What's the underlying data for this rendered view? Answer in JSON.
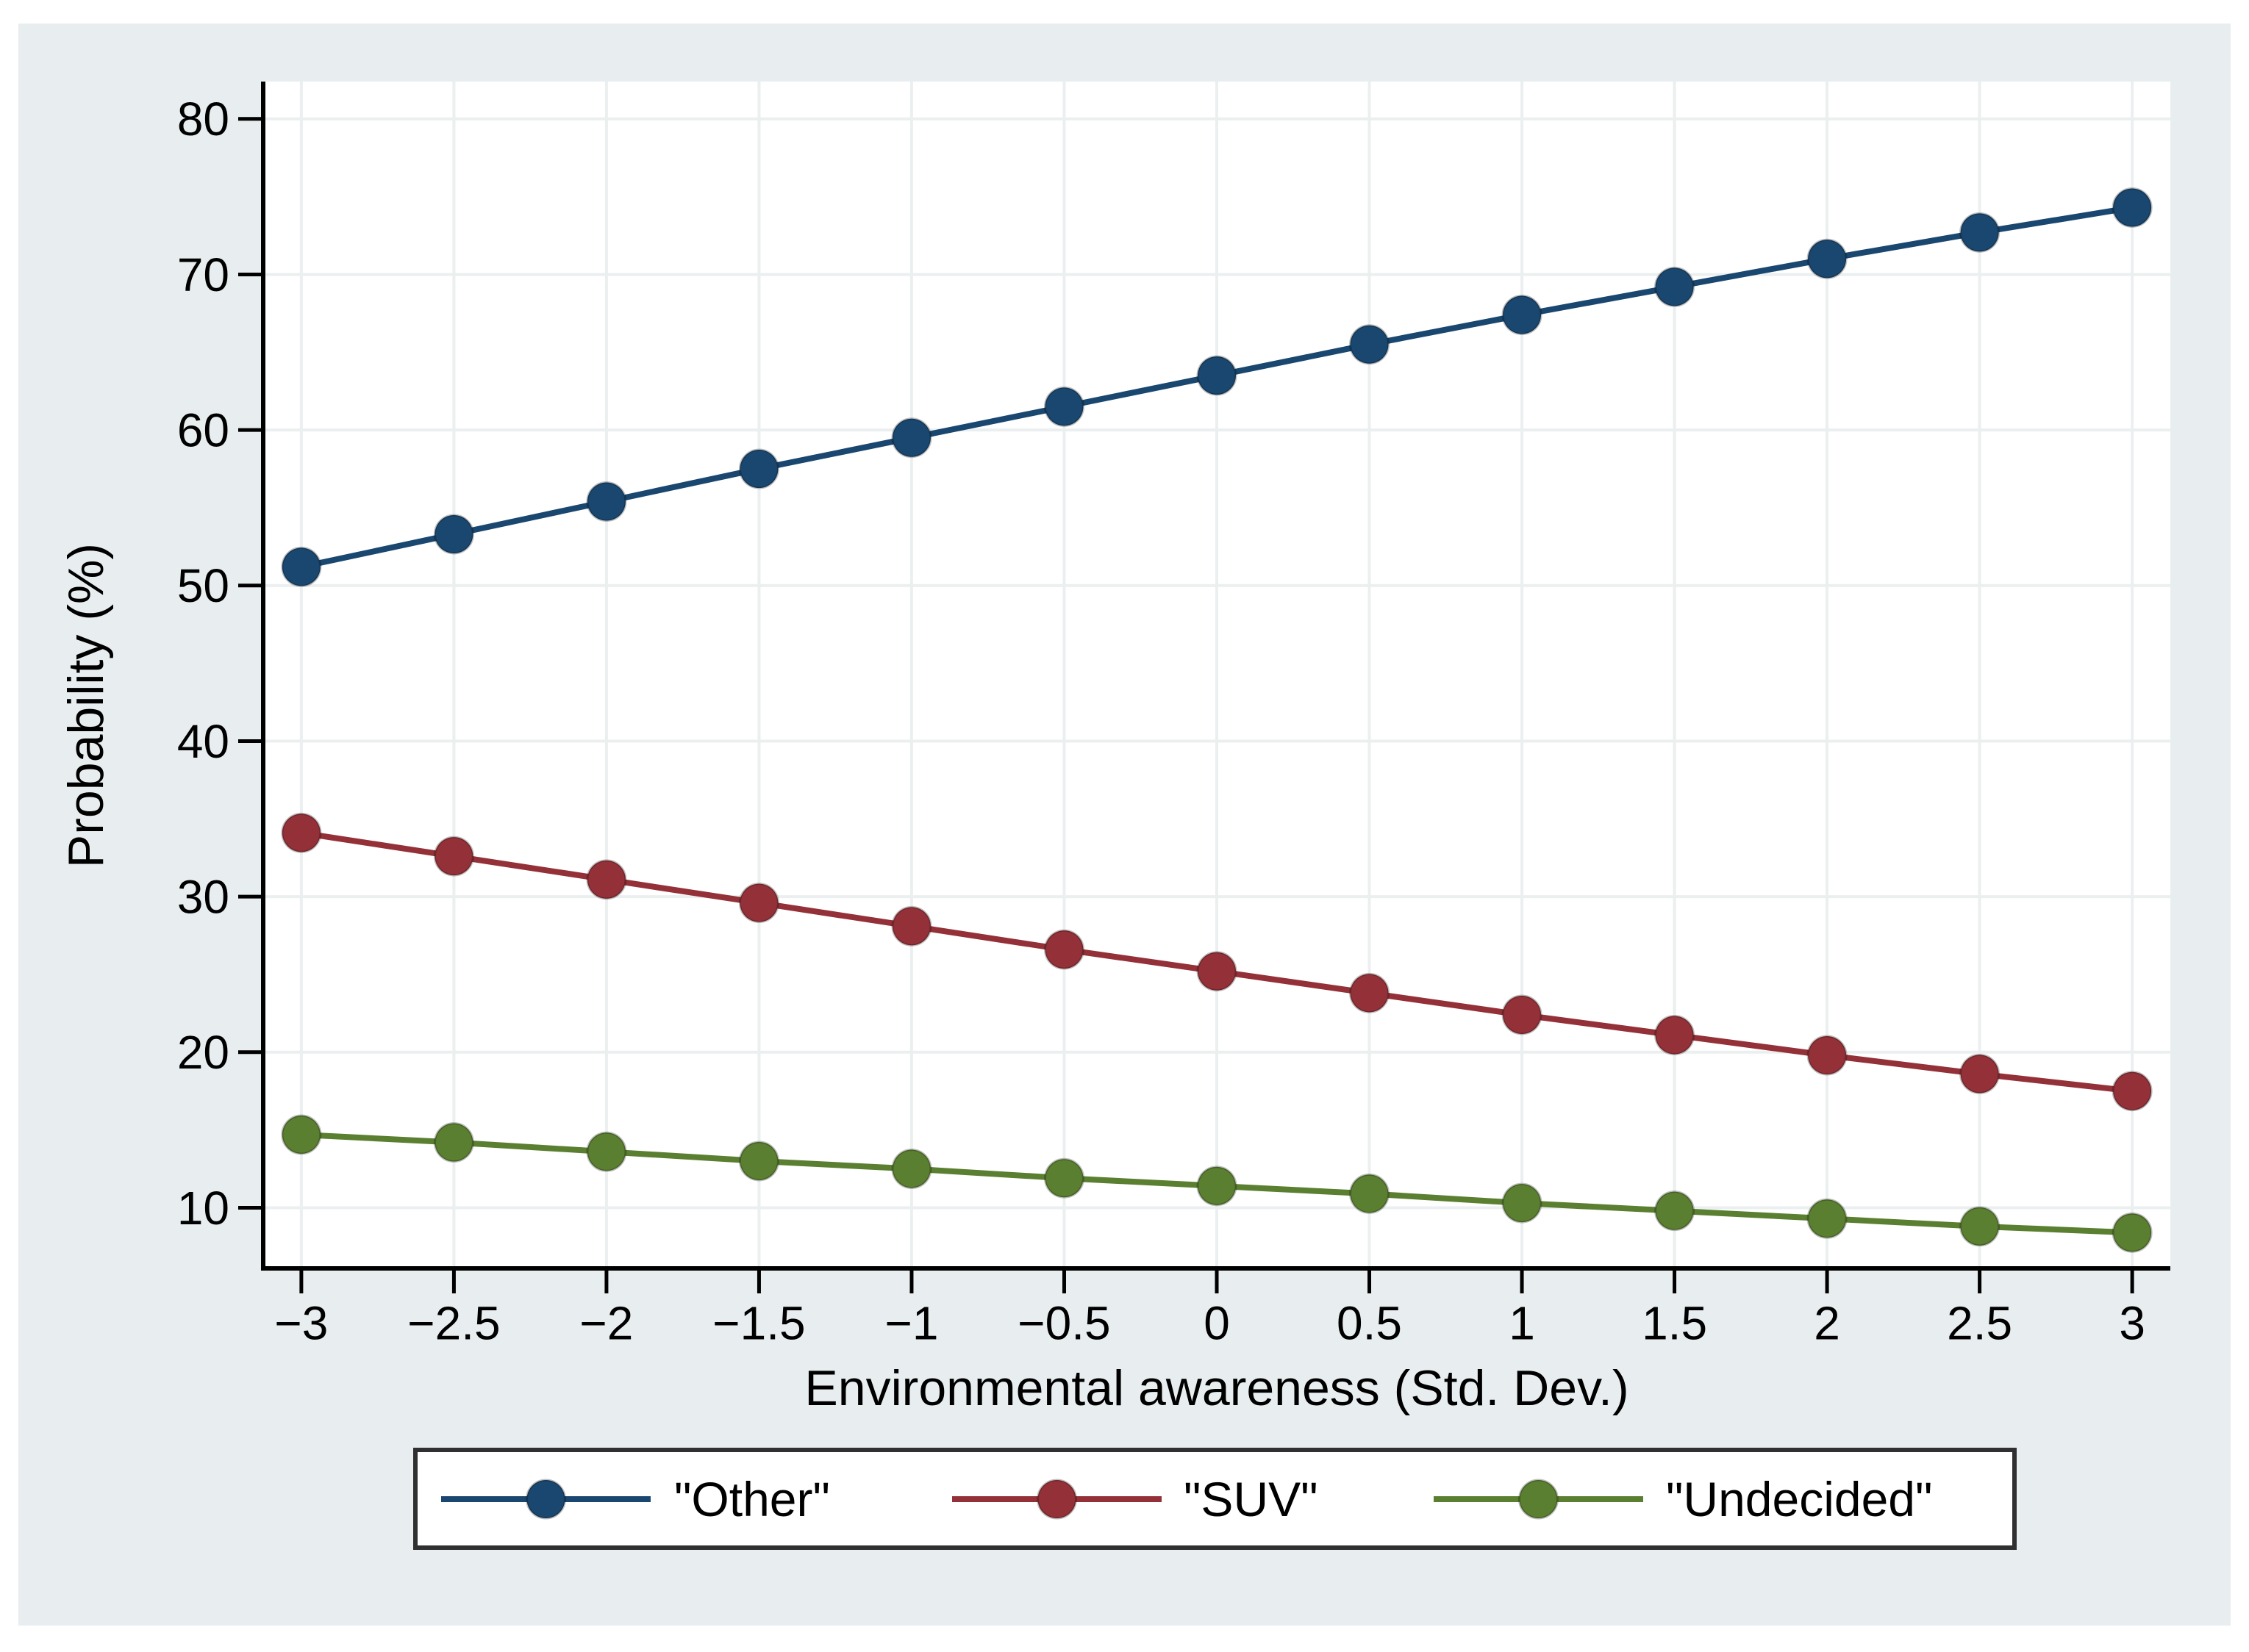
{
  "figure": {
    "background_color": "#e8eef0",
    "plot_background_color": "#ffffff",
    "grid_color": "#ebeff0",
    "axis_color": "#000000",
    "legend_border_color": "#303030",
    "legend_background_color": "#ffffff"
  },
  "chart_data": {
    "type": "line",
    "title": "",
    "xlabel": "Environmental awareness (Std. Dev.)",
    "ylabel": "Probability (%)",
    "grid": true,
    "legend_position": "bottom-center",
    "x": [
      -3,
      -2.5,
      -2,
      -1.5,
      -1,
      -0.5,
      0,
      0.5,
      1,
      1.5,
      2,
      2.5,
      3
    ],
    "x_tick_labels": [
      "−3",
      "−2.5",
      "−2",
      "−1.5",
      "−1",
      "−0.5",
      "0",
      "0.5",
      "1",
      "1.5",
      "2",
      "2.5",
      "3"
    ],
    "y_ticks": [
      10,
      20,
      30,
      40,
      50,
      60,
      70,
      80
    ],
    "y_tick_labels": [
      "10",
      "20",
      "30",
      "40",
      "50",
      "60",
      "70",
      "80"
    ],
    "xlim": [
      -3.125,
      3.125
    ],
    "ylim": [
      6.1,
      82.4
    ],
    "series": [
      {
        "key": "other",
        "name": "\"Other\"",
        "color": "#1a476f",
        "values": [
          51.2,
          53.3,
          55.4,
          57.5,
          59.5,
          61.5,
          63.5,
          65.5,
          67.4,
          69.2,
          71.0,
          72.7,
          74.3
        ]
      },
      {
        "key": "suv",
        "name": "\"SUV\"",
        "color": "#943138",
        "values": [
          34.1,
          32.6,
          31.1,
          29.6,
          28.1,
          26.6,
          25.2,
          23.8,
          22.4,
          21.1,
          19.8,
          18.6,
          17.5
        ]
      },
      {
        "key": "undecided",
        "name": "\"Undecided\"",
        "color": "#5b7f31",
        "values": [
          14.7,
          14.2,
          13.6,
          13.0,
          12.5,
          11.9,
          11.4,
          10.9,
          10.3,
          9.8,
          9.3,
          8.8,
          8.4
        ]
      }
    ]
  }
}
